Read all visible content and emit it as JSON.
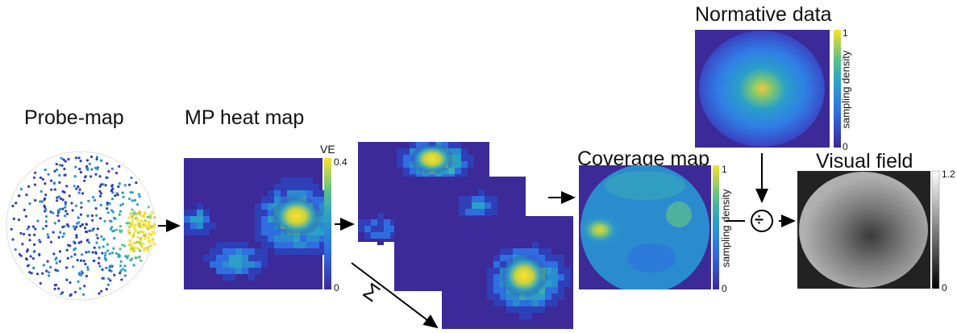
{
  "titles": {
    "probe": "Probe-map",
    "heat": "MP heat map",
    "coverage": "Coverage map",
    "normative": "Normative data",
    "visual": "Visual field"
  },
  "heat_colorbar": {
    "label": "VE",
    "max": "0.4",
    "min": "0"
  },
  "coverage_colorbar": {
    "label": "sampling density",
    "max": "1",
    "min": "0"
  },
  "normative_colorbar": {
    "label": "sampling density",
    "max": "1",
    "min": "0"
  },
  "visual_colorbar": {
    "max": "1.2",
    "min": "0"
  },
  "operators": {
    "sum": "Σ",
    "divide": "÷"
  },
  "colors": {
    "viridis_low": "#3b2a98",
    "viridis_mid": "#2aa0c8",
    "viridis_high": "#f9e22b",
    "arrow": "#000000"
  }
}
